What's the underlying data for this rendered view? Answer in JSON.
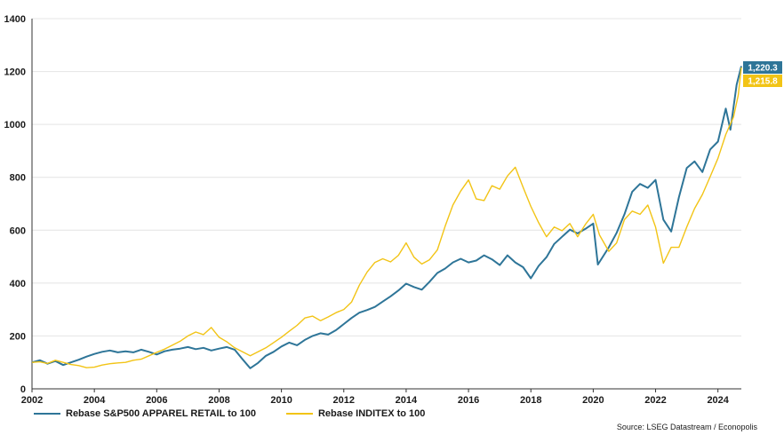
{
  "chart_data": {
    "type": "line",
    "xlabel": "",
    "ylabel": "",
    "xlim": [
      2002,
      2024.75
    ],
    "ylim": [
      0,
      1400
    ],
    "x_ticks": [
      "2002",
      "2004",
      "2006",
      "2008",
      "2010",
      "2012",
      "2014",
      "2016",
      "2018",
      "2020",
      "2022",
      "2024"
    ],
    "y_ticks": [
      "0",
      "200",
      "400",
      "600",
      "800",
      "1000",
      "1200",
      "1400"
    ],
    "grid": "horizontal",
    "legend_position": "bottom-left",
    "series": [
      {
        "name": "Rebase S&P500 APPAREL RETAIL to 100",
        "color": "#2E7598",
        "end_label": "1,220.3",
        "points": [
          [
            2002.0,
            100
          ],
          [
            2002.25,
            108
          ],
          [
            2002.5,
            95
          ],
          [
            2002.75,
            105
          ],
          [
            2003.0,
            90
          ],
          [
            2003.25,
            100
          ],
          [
            2003.5,
            110
          ],
          [
            2003.75,
            122
          ],
          [
            2004.0,
            132
          ],
          [
            2004.25,
            140
          ],
          [
            2004.5,
            145
          ],
          [
            2004.75,
            138
          ],
          [
            2005.0,
            142
          ],
          [
            2005.25,
            138
          ],
          [
            2005.5,
            148
          ],
          [
            2005.75,
            140
          ],
          [
            2006.0,
            130
          ],
          [
            2006.25,
            142
          ],
          [
            2006.5,
            148
          ],
          [
            2006.75,
            152
          ],
          [
            2007.0,
            158
          ],
          [
            2007.25,
            150
          ],
          [
            2007.5,
            155
          ],
          [
            2007.75,
            145
          ],
          [
            2008.0,
            152
          ],
          [
            2008.25,
            158
          ],
          [
            2008.5,
            148
          ],
          [
            2008.75,
            112
          ],
          [
            2009.0,
            78
          ],
          [
            2009.25,
            98
          ],
          [
            2009.5,
            125
          ],
          [
            2009.75,
            140
          ],
          [
            2010.0,
            160
          ],
          [
            2010.25,
            175
          ],
          [
            2010.5,
            165
          ],
          [
            2010.75,
            185
          ],
          [
            2011.0,
            200
          ],
          [
            2011.25,
            210
          ],
          [
            2011.5,
            205
          ],
          [
            2011.75,
            222
          ],
          [
            2012.0,
            245
          ],
          [
            2012.25,
            268
          ],
          [
            2012.5,
            288
          ],
          [
            2012.75,
            298
          ],
          [
            2013.0,
            310
          ],
          [
            2013.25,
            330
          ],
          [
            2013.5,
            350
          ],
          [
            2013.75,
            372
          ],
          [
            2014.0,
            398
          ],
          [
            2014.25,
            385
          ],
          [
            2014.5,
            375
          ],
          [
            2014.75,
            405
          ],
          [
            2015.0,
            438
          ],
          [
            2015.25,
            455
          ],
          [
            2015.5,
            478
          ],
          [
            2015.75,
            492
          ],
          [
            2016.0,
            478
          ],
          [
            2016.25,
            485
          ],
          [
            2016.5,
            505
          ],
          [
            2016.75,
            490
          ],
          [
            2017.0,
            468
          ],
          [
            2017.25,
            505
          ],
          [
            2017.5,
            478
          ],
          [
            2017.75,
            460
          ],
          [
            2018.0,
            418
          ],
          [
            2018.25,
            465
          ],
          [
            2018.5,
            498
          ],
          [
            2018.75,
            548
          ],
          [
            2019.0,
            575
          ],
          [
            2019.25,
            602
          ],
          [
            2019.5,
            588
          ],
          [
            2019.75,
            605
          ],
          [
            2020.0,
            625
          ],
          [
            2020.15,
            470
          ],
          [
            2020.5,
            535
          ],
          [
            2020.75,
            590
          ],
          [
            2021.0,
            660
          ],
          [
            2021.25,
            745
          ],
          [
            2021.5,
            775
          ],
          [
            2021.75,
            760
          ],
          [
            2022.0,
            790
          ],
          [
            2022.25,
            640
          ],
          [
            2022.5,
            595
          ],
          [
            2022.75,
            725
          ],
          [
            2023.0,
            835
          ],
          [
            2023.25,
            860
          ],
          [
            2023.5,
            820
          ],
          [
            2023.75,
            905
          ],
          [
            2024.0,
            935
          ],
          [
            2024.25,
            1060
          ],
          [
            2024.4,
            980
          ],
          [
            2024.6,
            1150
          ],
          [
            2024.75,
            1220.3
          ]
        ]
      },
      {
        "name": "Rebase INDITEX to 100",
        "color": "#F2C416",
        "end_label": "1,215.8",
        "points": [
          [
            2002.0,
            100
          ],
          [
            2002.25,
            102
          ],
          [
            2002.5,
            96
          ],
          [
            2002.75,
            108
          ],
          [
            2003.0,
            100
          ],
          [
            2003.25,
            92
          ],
          [
            2003.5,
            88
          ],
          [
            2003.75,
            80
          ],
          [
            2004.0,
            82
          ],
          [
            2004.25,
            90
          ],
          [
            2004.5,
            95
          ],
          [
            2004.75,
            98
          ],
          [
            2005.0,
            100
          ],
          [
            2005.25,
            108
          ],
          [
            2005.5,
            112
          ],
          [
            2005.75,
            125
          ],
          [
            2006.0,
            138
          ],
          [
            2006.25,
            150
          ],
          [
            2006.5,
            165
          ],
          [
            2006.75,
            180
          ],
          [
            2007.0,
            200
          ],
          [
            2007.25,
            215
          ],
          [
            2007.5,
            205
          ],
          [
            2007.75,
            232
          ],
          [
            2008.0,
            195
          ],
          [
            2008.25,
            178
          ],
          [
            2008.5,
            155
          ],
          [
            2008.75,
            140
          ],
          [
            2009.0,
            125
          ],
          [
            2009.25,
            140
          ],
          [
            2009.5,
            155
          ],
          [
            2009.75,
            175
          ],
          [
            2010.0,
            195
          ],
          [
            2010.25,
            218
          ],
          [
            2010.5,
            240
          ],
          [
            2010.75,
            268
          ],
          [
            2011.0,
            275
          ],
          [
            2011.25,
            258
          ],
          [
            2011.5,
            272
          ],
          [
            2011.75,
            288
          ],
          [
            2012.0,
            300
          ],
          [
            2012.25,
            328
          ],
          [
            2012.5,
            392
          ],
          [
            2012.75,
            442
          ],
          [
            2013.0,
            478
          ],
          [
            2013.25,
            492
          ],
          [
            2013.5,
            480
          ],
          [
            2013.75,
            505
          ],
          [
            2014.0,
            552
          ],
          [
            2014.25,
            498
          ],
          [
            2014.5,
            472
          ],
          [
            2014.75,
            488
          ],
          [
            2015.0,
            525
          ],
          [
            2015.25,
            615
          ],
          [
            2015.5,
            695
          ],
          [
            2015.75,
            748
          ],
          [
            2016.0,
            790
          ],
          [
            2016.25,
            718
          ],
          [
            2016.5,
            712
          ],
          [
            2016.75,
            768
          ],
          [
            2017.0,
            755
          ],
          [
            2017.25,
            805
          ],
          [
            2017.5,
            838
          ],
          [
            2017.75,
            762
          ],
          [
            2018.0,
            690
          ],
          [
            2018.25,
            628
          ],
          [
            2018.5,
            575
          ],
          [
            2018.75,
            612
          ],
          [
            2019.0,
            598
          ],
          [
            2019.25,
            625
          ],
          [
            2019.5,
            575
          ],
          [
            2019.75,
            622
          ],
          [
            2020.0,
            660
          ],
          [
            2020.2,
            582
          ],
          [
            2020.5,
            520
          ],
          [
            2020.75,
            552
          ],
          [
            2021.0,
            640
          ],
          [
            2021.25,
            672
          ],
          [
            2021.5,
            660
          ],
          [
            2021.75,
            695
          ],
          [
            2022.0,
            612
          ],
          [
            2022.25,
            475
          ],
          [
            2022.5,
            535
          ],
          [
            2022.75,
            535
          ],
          [
            2023.0,
            612
          ],
          [
            2023.25,
            682
          ],
          [
            2023.5,
            735
          ],
          [
            2023.75,
            802
          ],
          [
            2024.0,
            872
          ],
          [
            2024.25,
            962
          ],
          [
            2024.5,
            1028
          ],
          [
            2024.65,
            1110
          ],
          [
            2024.75,
            1215.8
          ]
        ]
      }
    ],
    "source": "Source: LSEG Datastream / Econopolis"
  }
}
